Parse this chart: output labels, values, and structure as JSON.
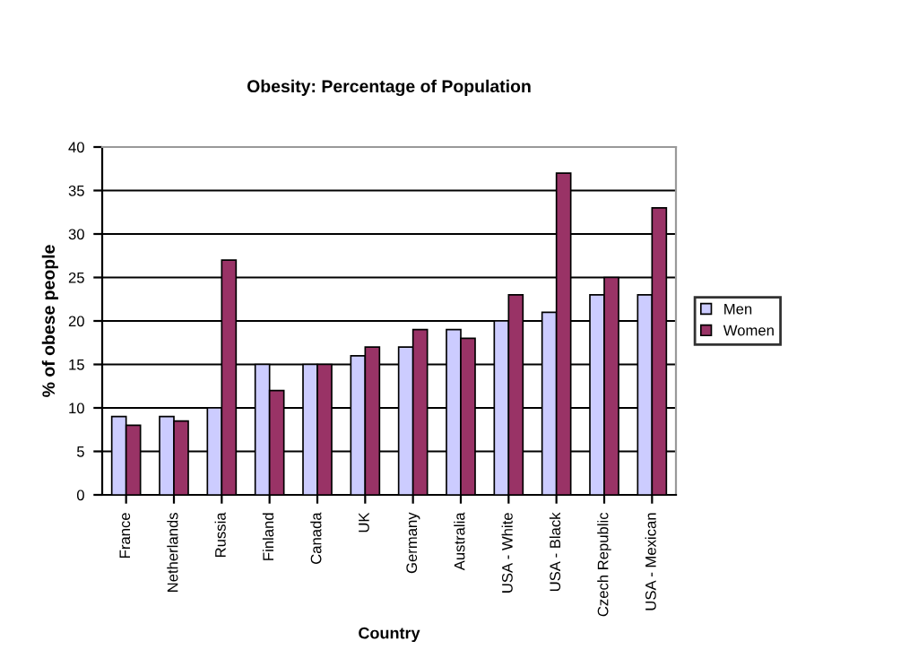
{
  "chart_data": {
    "type": "bar",
    "title": "Obesity: Percentage of Population",
    "xlabel": "Country",
    "ylabel": "% of obese people",
    "categories": [
      "France",
      "Netherlands",
      "Russia",
      "Finland",
      "Canada",
      "UK",
      "Germany",
      "Australia",
      "USA - White",
      "USA - Black",
      "Czech Republic",
      "USA - Mexican"
    ],
    "series": [
      {
        "name": "Men",
        "color": "#ccccff",
        "values": [
          9,
          9,
          10,
          15,
          15,
          16,
          17,
          19,
          20,
          21,
          23,
          23
        ]
      },
      {
        "name": "Women",
        "color": "#993366",
        "values": [
          8,
          8.5,
          27,
          12,
          15,
          17,
          19,
          18,
          23,
          37,
          25,
          33
        ]
      }
    ],
    "ylim": [
      0,
      40
    ],
    "yticks": [
      0,
      5,
      10,
      15,
      20,
      25,
      30,
      35,
      40
    ],
    "grid": "y",
    "legend": "right"
  }
}
